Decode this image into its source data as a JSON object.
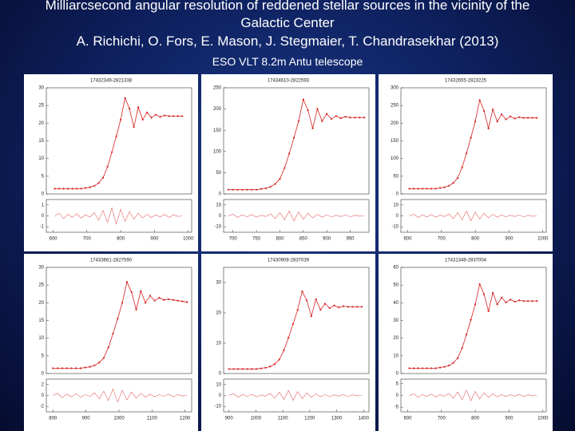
{
  "header": {
    "title": "Milliarcsecond angular resolution of reddened stellar sources in the vicinity of the Galactic Center",
    "authors": "A. Richichi, O. Fors, E. Mason, J. Stegmaier, T. Chandrasekhar (2013)",
    "telescope": "ESO VLT 8.2m Antu telescope"
  },
  "chart_data": [
    {
      "type": "line",
      "title": "17432349-2821338",
      "color": "#d62020",
      "x": [
        605,
        618,
        631,
        644,
        657,
        670,
        683,
        696,
        709,
        722,
        735,
        748,
        761,
        774,
        787,
        800,
        813,
        826,
        839,
        852,
        865,
        878,
        891,
        904,
        917,
        930,
        943,
        956,
        969,
        982
      ],
      "values": [
        1.5,
        1.5,
        1.5,
        1.5,
        1.5,
        1.5,
        1.5,
        1.7,
        1.9,
        2.3,
        3.1,
        4.6,
        7.7,
        11.8,
        16.3,
        21,
        27.1,
        24.1,
        18.9,
        24.5,
        21,
        23,
        21.6,
        22.4,
        21.8,
        22.2,
        22,
        22,
        22,
        22
      ],
      "xlim": [
        580,
        1010
      ],
      "xticks": [
        600,
        700,
        800,
        900,
        1000
      ],
      "ylim": [
        0,
        30
      ],
      "yticks": [
        0,
        5,
        10,
        15,
        20,
        25,
        30
      ],
      "residuals": {
        "values": [
          0,
          0.25,
          -0.25,
          0.15,
          -0.15,
          0.2,
          -0.2,
          0.1,
          -0.1,
          0.3,
          -0.4,
          0.5,
          -0.6,
          0.75,
          -0.75,
          0.6,
          -0.5,
          0.4,
          -0.3,
          0.25,
          -0.2,
          0.15,
          -0.15,
          0.1,
          -0.1,
          0.15,
          -0.15,
          0.1,
          -0.05,
          0
        ],
        "ylim": [
          -1.5,
          1.5
        ],
        "yticks": [
          -1,
          0,
          1
        ]
      }
    },
    {
      "type": "line",
      "title": "17434610-2822593",
      "color": "#d62020",
      "x": [
        690,
        700,
        710,
        720,
        730,
        740,
        750,
        760,
        770,
        780,
        790,
        800,
        810,
        820,
        830,
        840,
        850,
        860,
        870,
        880,
        890,
        900,
        910,
        920,
        930,
        940,
        950,
        960,
        970,
        980
      ],
      "values": [
        10,
        10,
        10,
        10,
        10,
        10,
        10,
        11.7,
        13.4,
        16.8,
        23.6,
        35.5,
        61,
        95,
        132.4,
        171.5,
        222.5,
        197,
        154.5,
        200.4,
        171.5,
        188.5,
        176.6,
        183.4,
        178.3,
        181.7,
        180,
        180,
        180,
        180
      ],
      "xlim": [
        680,
        990
      ],
      "xticks": [
        700,
        750,
        800,
        850,
        900,
        950
      ],
      "ylim": [
        0,
        250
      ],
      "yticks": [
        0,
        50,
        100,
        150,
        200,
        250
      ],
      "residuals": {
        "values": [
          0,
          1.5,
          -1.5,
          0.9,
          -0.9,
          1.2,
          -1.2,
          0.6,
          -0.6,
          1.8,
          -2.4,
          3,
          -3.6,
          4.5,
          -4.5,
          3.6,
          -3,
          2.4,
          -1.8,
          1.5,
          -1.2,
          0.9,
          -0.9,
          0.6,
          -0.6,
          0.9,
          -0.9,
          0.6,
          -0.3,
          0
        ],
        "ylim": [
          -15,
          15
        ],
        "yticks": [
          -10,
          0,
          10
        ]
      }
    },
    {
      "type": "line",
      "title": "17432655-2823225",
      "color": "#d62020",
      "x": [
        605,
        618,
        631,
        644,
        657,
        670,
        683,
        696,
        709,
        722,
        735,
        748,
        761,
        774,
        787,
        800,
        813,
        826,
        839,
        852,
        865,
        878,
        891,
        904,
        917,
        930,
        943,
        956,
        969,
        982
      ],
      "values": [
        15,
        15,
        15,
        15,
        15,
        15,
        15,
        17,
        19,
        23,
        31,
        45,
        75,
        115,
        159,
        205,
        265,
        235,
        185,
        239,
        205,
        225,
        211,
        219,
        213,
        217,
        215,
        215,
        215,
        215
      ],
      "xlim": [
        580,
        1010
      ],
      "xticks": [
        600,
        700,
        800,
        900,
        1000
      ],
      "ylim": [
        0,
        300
      ],
      "yticks": [
        0,
        50,
        100,
        150,
        200,
        250,
        300
      ],
      "residuals": {
        "values": [
          0,
          1.5,
          -1.5,
          0.9,
          -0.9,
          1.2,
          -1.2,
          0.6,
          -0.6,
          1.8,
          -2.4,
          3,
          -3.6,
          4.5,
          -4.5,
          3.6,
          -3,
          2.4,
          -1.8,
          1.5,
          -1.2,
          0.9,
          -0.9,
          0.6,
          -0.6,
          0.9,
          -0.9,
          0.6,
          -0.3,
          0
        ],
        "ylim": [
          -15,
          15
        ],
        "yticks": [
          -10,
          0,
          10
        ]
      }
    },
    {
      "type": "line",
      "title": "17433661-2827590",
      "color": "#d62020",
      "x": [
        800,
        814,
        828,
        842,
        856,
        870,
        884,
        898,
        912,
        926,
        940,
        954,
        968,
        982,
        996,
        1010,
        1024,
        1038,
        1052,
        1066,
        1080,
        1094,
        1108,
        1122,
        1136,
        1150,
        1164,
        1178,
        1192,
        1206
      ],
      "values": [
        1.5,
        1.5,
        1.5,
        1.5,
        1.5,
        1.5,
        1.5,
        1.7,
        1.9,
        2.3,
        3.1,
        4.4,
        7.4,
        11.3,
        15.5,
        20,
        25.9,
        23,
        18.1,
        23.3,
        20,
        22,
        20.6,
        21.4,
        20.8,
        21,
        20.8,
        20.6,
        20.4,
        20.2
      ],
      "xlim": [
        780,
        1220
      ],
      "xticks": [
        800,
        900,
        1000,
        1100,
        1200
      ],
      "ylim": [
        0,
        30
      ],
      "yticks": [
        0,
        5,
        10,
        15,
        20,
        25,
        30
      ],
      "residuals": {
        "values": [
          0,
          0.4,
          -0.4,
          0.24,
          -0.24,
          0.32,
          -0.32,
          0.16,
          -0.16,
          0.48,
          -0.64,
          0.8,
          -0.96,
          1.2,
          -1.2,
          0.96,
          -0.8,
          0.64,
          -0.48,
          0.4,
          -0.32,
          0.24,
          -0.24,
          0.16,
          -0.16,
          0.24,
          -0.24,
          0.16,
          -0.08,
          0
        ],
        "ylim": [
          -3,
          3
        ],
        "yticks": [
          -2,
          0,
          2
        ]
      }
    },
    {
      "type": "line",
      "title": "17430908-2837039",
      "color": "#d62020",
      "x": [
        900,
        917,
        934,
        951,
        968,
        985,
        1002,
        1019,
        1036,
        1053,
        1070,
        1087,
        1104,
        1121,
        1138,
        1155,
        1172,
        1189,
        1206,
        1223,
        1240,
        1257,
        1274,
        1291,
        1308,
        1325,
        1342,
        1359,
        1376,
        1393
      ],
      "values": [
        1.5,
        1.5,
        1.5,
        1.5,
        1.5,
        1.5,
        1.5,
        1.7,
        1.9,
        2.3,
        3.1,
        4.6,
        7.7,
        11.8,
        16.3,
        21,
        27.1,
        24.1,
        18.9,
        24.5,
        21,
        23,
        21.6,
        22.4,
        21.8,
        22.2,
        22,
        22,
        22,
        22
      ],
      "xlim": [
        880,
        1420
      ],
      "xticks": [
        900,
        1000,
        1100,
        1200,
        1300,
        1400
      ],
      "ylim": [
        0,
        35
      ],
      "yticks": [
        0,
        10,
        20,
        30
      ],
      "residuals": {
        "values": [
          0,
          1.5,
          -1.5,
          0.9,
          -0.9,
          1.2,
          -1.2,
          0.6,
          -0.6,
          1.8,
          -2.4,
          3,
          -3.6,
          4.5,
          -4.5,
          3.6,
          -3,
          2.4,
          -1.8,
          1.5,
          -1.2,
          0.9,
          -0.9,
          0.6,
          -0.6,
          0.9,
          -0.9,
          0.6,
          -0.3,
          0
        ],
        "ylim": [
          -15,
          15
        ],
        "yticks": [
          -10,
          0,
          10
        ]
      }
    },
    {
      "type": "line",
      "title": "17431348-2837004",
      "color": "#d62020",
      "x": [
        605,
        618,
        631,
        644,
        657,
        670,
        683,
        696,
        709,
        722,
        735,
        748,
        761,
        774,
        787,
        800,
        813,
        826,
        839,
        852,
        865,
        878,
        891,
        904,
        917,
        930,
        943,
        956,
        969,
        982
      ],
      "values": [
        3,
        3,
        3,
        3,
        3,
        3,
        3,
        3.4,
        3.8,
        4.5,
        6,
        8.7,
        14.4,
        22,
        30.4,
        39.1,
        50.5,
        44.8,
        35.3,
        45.6,
        39.1,
        42.9,
        40.2,
        41.8,
        40.6,
        41.4,
        41,
        41,
        41,
        41
      ],
      "xlim": [
        580,
        1010
      ],
      "xticks": [
        600,
        700,
        800,
        900,
        1000
      ],
      "ylim": [
        0,
        60
      ],
      "yticks": [
        0,
        10,
        20,
        30,
        40,
        50,
        60
      ],
      "residuals": {
        "values": [
          0,
          0.75,
          -0.75,
          0.45,
          -0.45,
          0.6,
          -0.6,
          0.3,
          -0.3,
          0.9,
          -1.2,
          1.5,
          -1.8,
          2.25,
          -2.25,
          1.8,
          -1.5,
          1.2,
          -0.9,
          0.75,
          -0.6,
          0.45,
          -0.45,
          0.3,
          -0.3,
          0.45,
          -0.45,
          0.3,
          -0.15,
          0
        ],
        "ylim": [
          -7,
          7
        ],
        "yticks": [
          -5,
          0,
          5
        ]
      }
    }
  ]
}
